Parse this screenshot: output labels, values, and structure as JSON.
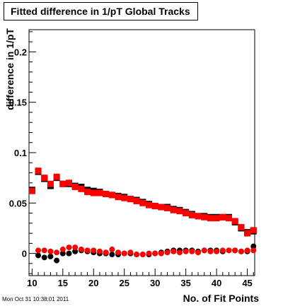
{
  "chart_data": {
    "type": "scatter",
    "title": "Fitted difference in 1/pT  Global Tracks",
    "xlabel": "No. of Fit Points",
    "ylabel": "difference in 1/pT",
    "xlim": [
      9.5,
      46.2
    ],
    "ylim": [
      -0.022,
      0.222
    ],
    "xticks": [
      "10",
      "15",
      "20",
      "25",
      "30",
      "35",
      "40",
      "45"
    ],
    "yticks": [
      "0",
      "0.05",
      "0.1",
      "0.15",
      "0.2"
    ],
    "grid": false,
    "legend": "none",
    "x": [
      10,
      11,
      12,
      13,
      14,
      15,
      16,
      17,
      18,
      19,
      20,
      21,
      22,
      23,
      24,
      25,
      26,
      27,
      28,
      29,
      30,
      31,
      32,
      33,
      34,
      35,
      36,
      37,
      38,
      39,
      40,
      41,
      42,
      43,
      44,
      45,
      46
    ],
    "series": [
      {
        "color": "#000000",
        "marker": "square",
        "values": [
          0.063,
          0.081,
          0.074,
          0.067,
          0.075,
          0.069,
          0.069,
          0.067,
          0.066,
          0.063,
          0.062,
          0.061,
          0.059,
          0.058,
          0.057,
          0.056,
          0.054,
          0.053,
          0.051,
          0.049,
          0.047,
          0.046,
          0.046,
          0.044,
          0.043,
          0.041,
          0.039,
          0.037,
          0.037,
          0.036,
          0.036,
          0.036,
          0.036,
          0.031,
          0.025,
          0.021,
          0.022
        ]
      },
      {
        "color": "#ff0000",
        "marker": "square",
        "values": [
          0.062,
          0.082,
          0.075,
          0.069,
          0.076,
          0.069,
          0.07,
          0.066,
          0.064,
          0.061,
          0.06,
          0.06,
          0.059,
          0.058,
          0.056,
          0.055,
          0.054,
          0.052,
          0.05,
          0.048,
          0.047,
          0.046,
          0.045,
          0.043,
          0.042,
          0.04,
          0.038,
          0.037,
          0.036,
          0.035,
          0.035,
          0.036,
          0.035,
          0.032,
          0.026,
          0.02,
          0.023
        ]
      },
      {
        "color": "#000000",
        "marker": "circle",
        "values": [
          null,
          -0.002,
          -0.004,
          -0.003,
          -0.007,
          0.0,
          0.0,
          0.002,
          0.003,
          0.002,
          0.001,
          0.0,
          0.0,
          -0.001,
          -0.001,
          0.0,
          0.0,
          -0.001,
          -0.001,
          -0.001,
          0.0,
          0.001,
          0.002,
          0.003,
          0.003,
          0.003,
          0.003,
          0.002,
          0.003,
          0.003,
          0.003,
          0.002,
          0.003,
          0.003,
          0.002,
          0.002,
          0.007
        ]
      },
      {
        "color": "#ff0000",
        "marker": "circle",
        "values": [
          null,
          0.003,
          0.003,
          0.002,
          0.001,
          0.004,
          0.006,
          0.006,
          0.004,
          0.003,
          0.003,
          0.002,
          0.001,
          0.004,
          0.001,
          0.0,
          0.001,
          -0.001,
          -0.001,
          0.0,
          0.0,
          0.0,
          0.001,
          0.002,
          0.001,
          0.002,
          0.002,
          0.001,
          0.003,
          0.002,
          0.002,
          0.003,
          0.003,
          0.003,
          0.002,
          0.003,
          0.003
        ]
      }
    ]
  },
  "footer": "Mon Oct 31 10:38:01 2011"
}
